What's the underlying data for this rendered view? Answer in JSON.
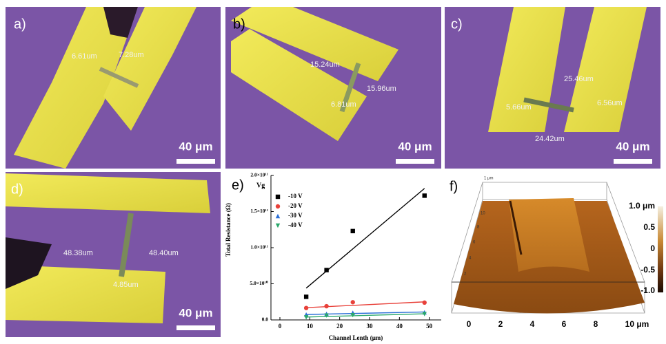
{
  "panels": [
    {
      "label": "a)",
      "annotations": [
        "6.61um",
        "7.28um"
      ],
      "scale_bar": "40 μm"
    },
    {
      "label": "b)",
      "annotations": [
        "15.24um",
        "15.96um",
        "6.81um"
      ],
      "scale_bar": "40 μm"
    },
    {
      "label": "c)",
      "annotations": [
        "25.46um",
        "5.66um",
        "6.56um",
        "24.42um"
      ],
      "scale_bar": "40 μm"
    },
    {
      "label": "d)",
      "annotations": [
        "48.38um",
        "48.40um",
        "4.85um"
      ],
      "scale_bar": "40 μm"
    }
  ],
  "chart_data": {
    "type": "scatter",
    "panel_label": "e)",
    "legend_title": "Vg",
    "xlabel": "Channel Lenth (μm)",
    "ylabel": "Total Resistance (Ω)",
    "xlim": [
      -3,
      54
    ],
    "ylim": [
      0,
      200000000000
    ],
    "xticks": [
      0,
      10,
      20,
      30,
      40,
      50
    ],
    "yticks": [
      {
        "value": 0,
        "label": "0.0"
      },
      {
        "value": 50000000000,
        "label": "5.0×10¹⁰"
      },
      {
        "value": 100000000000,
        "label": "1.0×10¹¹"
      },
      {
        "value": 150000000000,
        "label": "1.5×10¹¹"
      },
      {
        "value": 200000000000,
        "label": "2.0×10¹¹"
      }
    ],
    "series": [
      {
        "name": "-10 V",
        "color": "#000000",
        "marker": "square",
        "x": [
          8.8,
          15.6,
          24.4,
          48.4
        ],
        "values": [
          32000000000,
          69000000000,
          123000000000,
          172000000000
        ],
        "fit": {
          "x": [
            8.8,
            48.4
          ],
          "values": [
            44000000000,
            182000000000
          ]
        }
      },
      {
        "name": "-20 V",
        "color": "#e8413a",
        "marker": "circle",
        "x": [
          8.8,
          15.6,
          24.4,
          48.4
        ],
        "values": [
          16500000000,
          19000000000,
          24500000000,
          24000000000
        ],
        "fit": {
          "x": [
            8.8,
            48.4
          ],
          "values": [
            17000000000,
            25000000000
          ]
        }
      },
      {
        "name": "-30 V",
        "color": "#2b6fd6",
        "marker": "triangle-up",
        "x": [
          8.8,
          15.6,
          24.4,
          48.4
        ],
        "values": [
          7500000000,
          8500000000,
          10000000000,
          10500000000
        ],
        "fit": {
          "x": [
            8.8,
            48.4
          ],
          "values": [
            7500000000,
            11000000000
          ]
        }
      },
      {
        "name": "-40 V",
        "color": "#2aa86b",
        "marker": "triangle-down",
        "x": [
          8.8,
          15.6,
          24.4,
          48.4
        ],
        "values": [
          3500000000,
          6000000000,
          6500000000,
          8000000000
        ],
        "fit": {
          "x": [
            8.8,
            48.4
          ],
          "values": [
            4000000000,
            8500000000
          ]
        }
      }
    ]
  },
  "afm": {
    "label": "f)",
    "colorbar_ticks": [
      "1.0 μm",
      "0.5",
      "0",
      "-0.5",
      "-1.0"
    ],
    "x_ticks": [
      "0",
      "2",
      "4",
      "6",
      "8",
      "10 μm"
    ],
    "box_labels": [
      "1 μm",
      "10",
      "8",
      "6",
      "4",
      "2"
    ]
  }
}
